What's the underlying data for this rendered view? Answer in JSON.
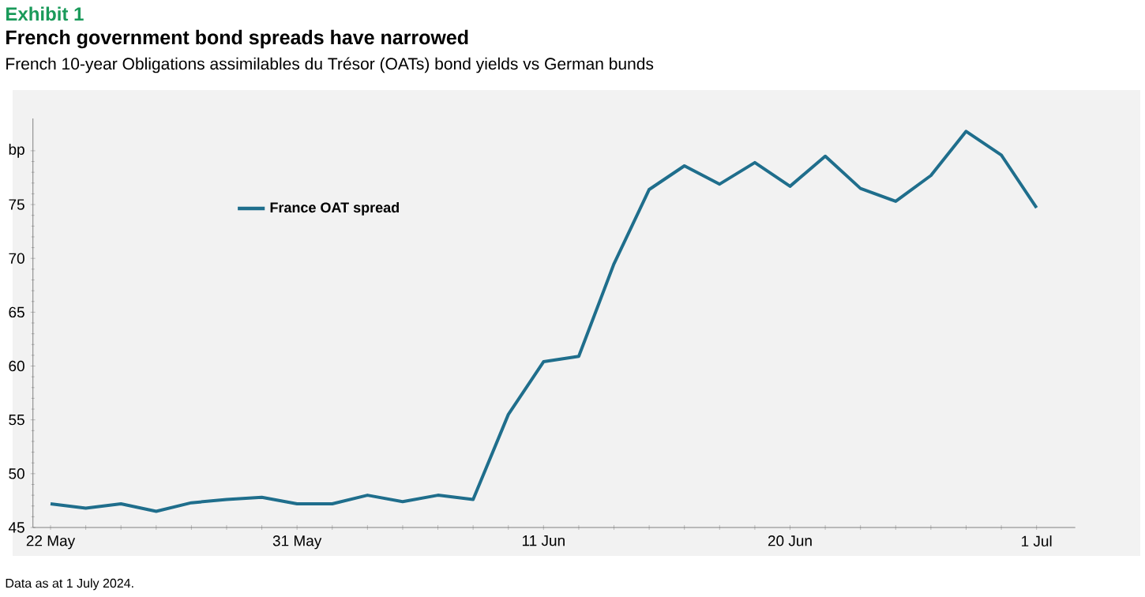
{
  "chart_data": {
    "type": "line",
    "title": "French government bond spreads have narrowed",
    "subtitle": "French 10-year Obligations assimilables du Trésor (OATs) bond yields vs German bunds",
    "annotations": [
      "Exhibit 1",
      "Data as at 1 July 2024."
    ],
    "categories": [
      "22 May",
      null,
      null,
      null,
      null,
      null,
      null,
      "31 May",
      null,
      null,
      null,
      null,
      null,
      null,
      "11 Jun",
      null,
      null,
      null,
      null,
      null,
      null,
      "20 Jun",
      null,
      null,
      null,
      null,
      null,
      null,
      "1 Jul"
    ],
    "series": [
      {
        "name": "France OAT spread",
        "color": "#1f6e8c",
        "values": [
          47.2,
          46.8,
          47.2,
          46.5,
          47.3,
          47.6,
          47.8,
          47.2,
          47.2,
          48.0,
          47.4,
          48.0,
          47.6,
          55.5,
          60.4,
          60.9,
          69.5,
          76.4,
          78.6,
          76.9,
          78.9,
          76.7,
          79.5,
          76.5,
          75.3,
          77.7,
          81.8,
          79.6,
          74.7
        ]
      }
    ],
    "ylim": [
      45,
      83
    ],
    "yticks": [
      45,
      50,
      55,
      60,
      65,
      70,
      75,
      {
        "value": 80,
        "label": "bp"
      }
    ],
    "legend": "top left",
    "marker": "none",
    "line_style": "solid",
    "grid": false
  }
}
